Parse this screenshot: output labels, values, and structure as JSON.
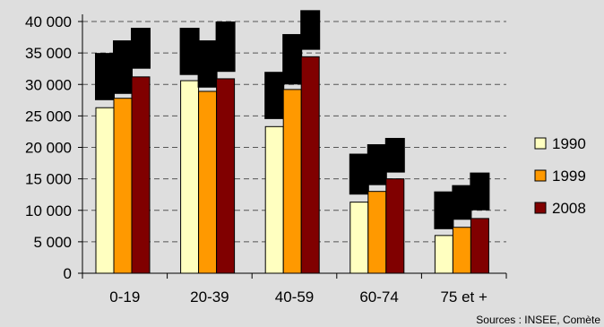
{
  "chart_data": {
    "type": "bar",
    "categories": [
      "0-19",
      "20-39",
      "40-59",
      "60-74",
      "75 et +"
    ],
    "series": [
      {
        "name": "1990",
        "color": "#ffffc0",
        "values": [
          26300,
          30600,
          23300,
          11300,
          6000
        ]
      },
      {
        "name": "1999",
        "color": "#ff9900",
        "values": [
          27800,
          28900,
          29200,
          13000,
          7300
        ]
      },
      {
        "name": "2008",
        "color": "#800000",
        "values": [
          31200,
          30900,
          34400,
          15000,
          8700
        ]
      }
    ],
    "ylim": [
      0,
      40000
    ],
    "yticks": [
      0,
      5000,
      10000,
      15000,
      20000,
      25000,
      30000,
      35000,
      40000
    ],
    "ytick_labels": [
      "0",
      "5 000",
      "10 000",
      "15 000",
      "20 000",
      "25 000",
      "30 000",
      "35 000",
      "40 000"
    ],
    "grid": "horizontal dashed",
    "legend_position": "right",
    "source": "Sources : INSEE, Comète",
    "overlay_color": "#000000",
    "annotation_boxes_value_span": [
      [
        [
          7500,
          27500
        ],
        [
          8500,
          28500
        ],
        [
          6500,
          32500
        ]
      ],
      [
        [
          7500,
          31500
        ],
        [
          7500,
          29500
        ],
        [
          8000,
          32000
        ]
      ],
      [
        [
          7500,
          24500
        ],
        [
          8000,
          30000
        ],
        [
          8000,
          35500
        ]
      ],
      [
        [
          6500,
          12500
        ],
        [
          6500,
          14000
        ],
        [
          5500,
          16000
        ]
      ],
      [
        [
          6000,
          7000
        ],
        [
          5500,
          8500
        ],
        [
          6000,
          10000
        ]
      ]
    ]
  }
}
